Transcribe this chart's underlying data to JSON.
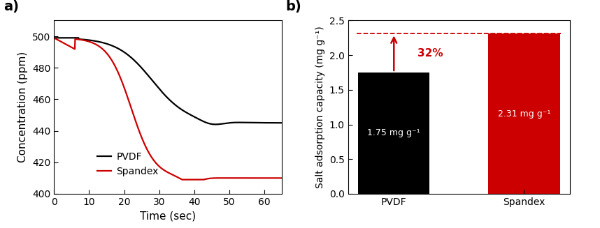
{
  "panel_a": {
    "title": "a)",
    "xlabel": "Time (sec)",
    "ylabel": "Concentration (ppm)",
    "xlim": [
      0,
      65
    ],
    "ylim": [
      400,
      510
    ],
    "yticks": [
      400,
      420,
      440,
      460,
      480,
      500
    ],
    "xticks": [
      0,
      10,
      20,
      30,
      40,
      50,
      60
    ],
    "pvdf_color": "#000000",
    "spandex_color": "#cc0000",
    "legend_labels": [
      "PVDF",
      "Spandex"
    ]
  },
  "panel_b": {
    "title": "b)",
    "ylabel": "Salt adsorption capacity (mg g⁻¹)",
    "categories": [
      "PVDF",
      "Spandex"
    ],
    "values": [
      1.75,
      2.31
    ],
    "bar_colors": [
      "#000000",
      "#cc0000"
    ],
    "ylim": [
      0,
      2.5
    ],
    "yticks": [
      0.0,
      0.5,
      1.0,
      1.5,
      2.0,
      2.5
    ],
    "bar_label_0": "1.75 mg g⁻¹",
    "bar_label_1": "2.31 mg g⁻¹",
    "annotation_pct": "32%",
    "dashed_line_y": 2.31,
    "arrow_color": "#cc0000",
    "dashed_color": "#cc0000"
  }
}
